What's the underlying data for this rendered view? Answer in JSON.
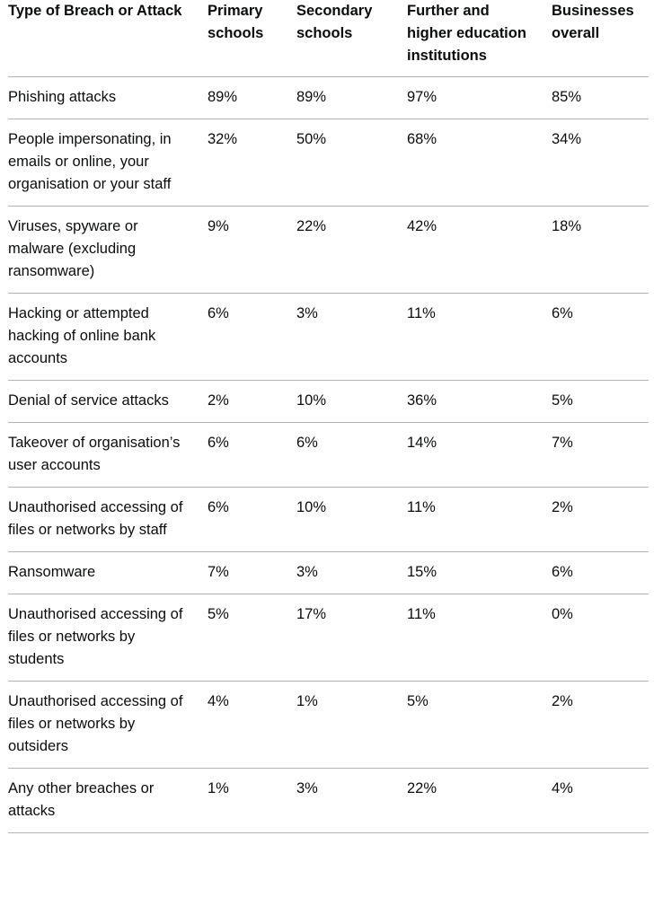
{
  "table": {
    "header": [
      "Type of Breach or Attack",
      "Primary schools",
      "Secondary schools",
      "Further and higher education institutions",
      "Businesses overall"
    ],
    "rows": [
      [
        "Phishing attacks",
        "89%",
        "89%",
        "97%",
        "85%"
      ],
      [
        "People impersonating, in emails or online, your organisation or your staff",
        "32%",
        "50%",
        "68%",
        "34%"
      ],
      [
        "Viruses, spyware or malware (excluding ransomware)",
        "9%",
        "22%",
        "42%",
        "18%"
      ],
      [
        "Hacking or attempted hacking of online bank accounts",
        "6%",
        "3%",
        "11%",
        "6%"
      ],
      [
        "Denial of service attacks",
        "2%",
        "10%",
        "36%",
        "5%"
      ],
      [
        "Takeover of organisation’s user accounts",
        "6%",
        "6%",
        "14%",
        "7%"
      ],
      [
        "Unauthorised accessing of files or networks by staff",
        "6%",
        "10%",
        "11%",
        "2%"
      ],
      [
        "Ransomware",
        "7%",
        "3%",
        "15%",
        "6%"
      ],
      [
        "Unauthorised accessing of files or networks by students",
        "5%",
        "17%",
        "11%",
        "0%"
      ],
      [
        "Unauthorised accessing of files or networks by outsiders",
        "4%",
        "1%",
        "5%",
        "2%"
      ],
      [
        "Any other breaches or attacks",
        "1%",
        "3%",
        "22%",
        "4%"
      ]
    ]
  }
}
